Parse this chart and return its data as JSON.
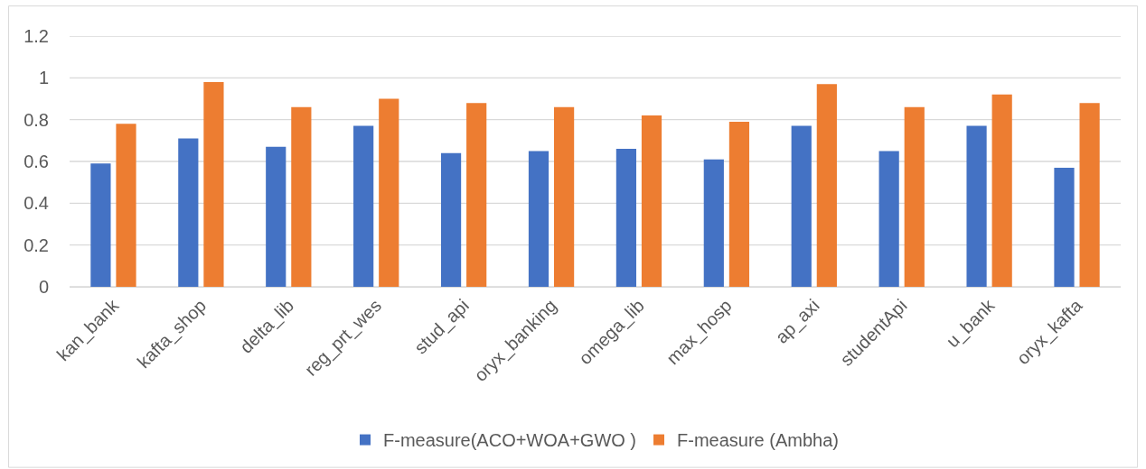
{
  "chart_data": {
    "type": "bar",
    "categories": [
      "kan_bank",
      "kafta_shop",
      "delta_lib",
      "reg_prt_wes",
      "stud_api",
      "oryx_banking",
      "omega_lib",
      "max_hosp",
      "ap_axi",
      "studentApi",
      "u_bank",
      "oryx_kafta"
    ],
    "series": [
      {
        "name": "F-measure(ACO+WOA+GWO )",
        "color": "#4472c4",
        "values": [
          0.59,
          0.71,
          0.67,
          0.77,
          0.64,
          0.65,
          0.66,
          0.61,
          0.77,
          0.65,
          0.77,
          0.57
        ]
      },
      {
        "name": "F-measure (Ambha)",
        "color": "#ed7d31",
        "values": [
          0.78,
          0.98,
          0.86,
          0.9,
          0.88,
          0.86,
          0.82,
          0.79,
          0.97,
          0.86,
          0.92,
          0.88
        ]
      }
    ],
    "ylim": [
      0,
      1.2
    ],
    "yticks": [
      0,
      0.2,
      0.4,
      0.6,
      0.8,
      1,
      1.2
    ],
    "grid": "y",
    "legend": "bottom"
  }
}
